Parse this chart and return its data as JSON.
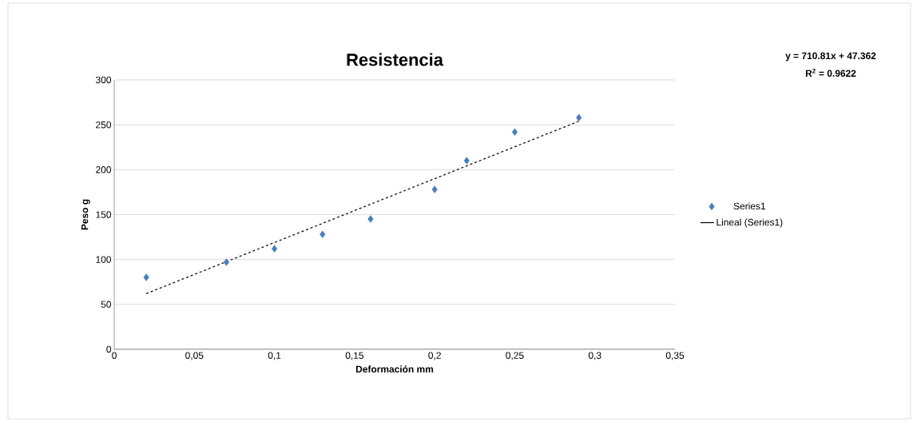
{
  "chart_data": {
    "type": "scatter",
    "title": "Resistencia",
    "xlabel": "Deformación mm",
    "ylabel": "Peso g",
    "x": [
      0.02,
      0.07,
      0.1,
      0.13,
      0.16,
      0.2,
      0.22,
      0.25,
      0.29
    ],
    "series": [
      {
        "name": "Series1",
        "color": "#4a7ebb",
        "marker": "diamond",
        "values": [
          80,
          97,
          112,
          128,
          145,
          178,
          210,
          242,
          258
        ]
      },
      {
        "name": "Lineal (Series1)",
        "type": "line",
        "color": "#000000",
        "line_style": "dashed",
        "marker": "none",
        "x": [
          0.02,
          0.29
        ],
        "values": [
          62,
          254
        ]
      }
    ],
    "xlim": [
      0,
      0.35
    ],
    "ylim": [
      0,
      300
    ],
    "xticks": [
      0,
      {
        "value": 0.05,
        "label": "0,05"
      },
      {
        "value": 0.1,
        "label": "0,1"
      },
      {
        "value": 0.15,
        "label": "0,15"
      },
      {
        "value": 0.2,
        "label": "0,2"
      },
      {
        "value": 0.25,
        "label": "0,25"
      },
      {
        "value": 0.3,
        "label": "0,3"
      },
      {
        "value": 0.35,
        "label": "0,35"
      }
    ],
    "yticks": [
      0,
      50,
      100,
      150,
      200,
      250,
      300
    ],
    "grid": "y",
    "legend": "right",
    "annotations": [
      "y = 710.81x + 47.362",
      "R$^{2}$ = 0.9622"
    ]
  }
}
